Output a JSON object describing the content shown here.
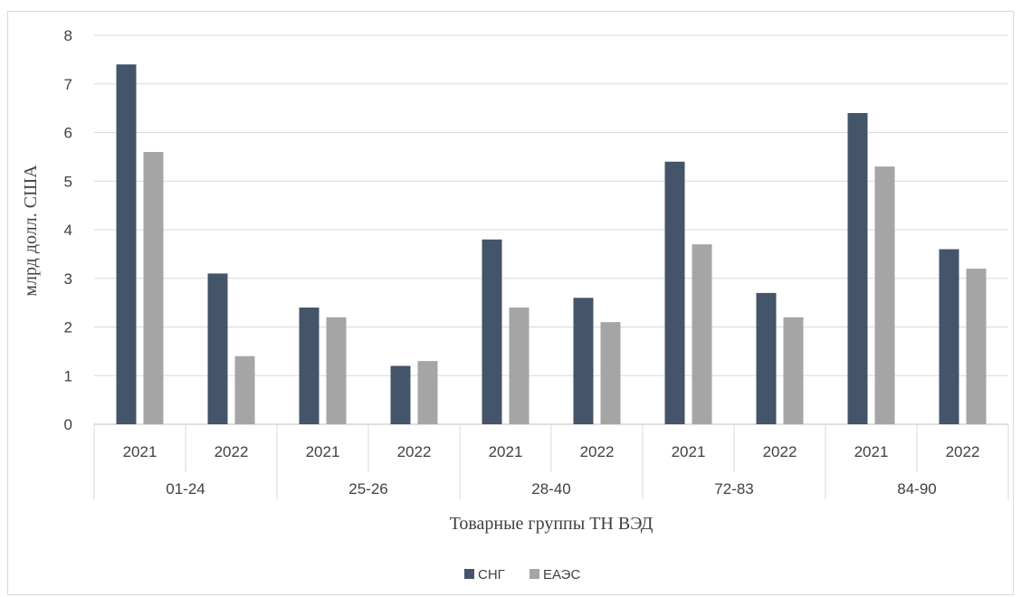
{
  "chart_data": {
    "type": "bar",
    "ylabel": "млрд долл. США",
    "xlabel": "Товарные группы ТН ВЭД",
    "ylim": [
      0,
      8
    ],
    "yticks": [
      0,
      1,
      2,
      3,
      4,
      5,
      6,
      7,
      8
    ],
    "grid": true,
    "legend_position": "bottom",
    "groups": [
      "01-24",
      "25-26",
      "28-40",
      "72-83",
      "84-90"
    ],
    "years": [
      "2021",
      "2022"
    ],
    "categories": [
      {
        "group": "01-24",
        "year": "2021"
      },
      {
        "group": "01-24",
        "year": "2022"
      },
      {
        "group": "25-26",
        "year": "2021"
      },
      {
        "group": "25-26",
        "year": "2022"
      },
      {
        "group": "28-40",
        "year": "2021"
      },
      {
        "group": "28-40",
        "year": "2022"
      },
      {
        "group": "72-83",
        "year": "2021"
      },
      {
        "group": "72-83",
        "year": "2022"
      },
      {
        "group": "84-90",
        "year": "2021"
      },
      {
        "group": "84-90",
        "year": "2022"
      }
    ],
    "series": [
      {
        "name": "СНГ",
        "color": "#44546a",
        "values": [
          7.4,
          3.1,
          2.4,
          1.2,
          3.8,
          2.6,
          5.4,
          2.7,
          6.4,
          3.6
        ]
      },
      {
        "name": "ЕАЭС",
        "color": "#a5a5a5",
        "values": [
          5.6,
          1.4,
          2.2,
          1.3,
          2.4,
          2.1,
          3.7,
          2.2,
          5.3,
          3.2
        ]
      }
    ]
  }
}
